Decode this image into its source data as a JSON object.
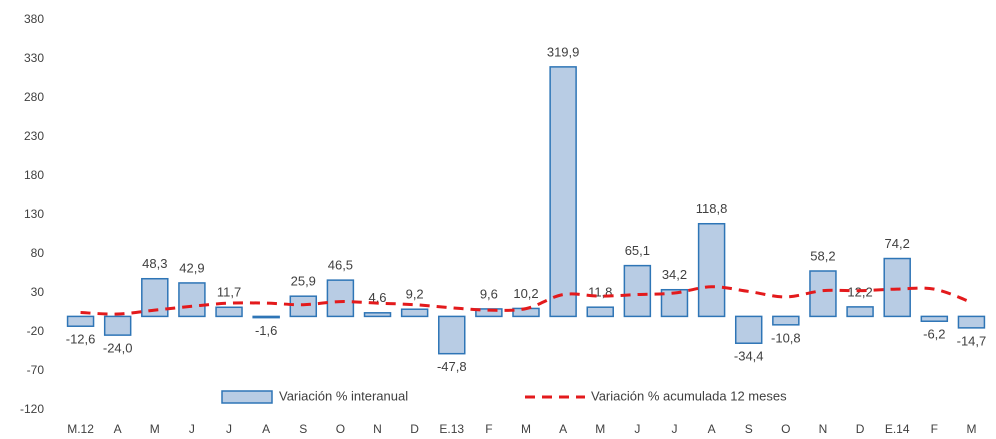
{
  "chart_data": {
    "type": "bar",
    "categories": [
      "M.12",
      "A",
      "M",
      "J",
      "J",
      "A",
      "S",
      "O",
      "N",
      "D",
      "E.13",
      "F",
      "M",
      "A",
      "M",
      "J",
      "J",
      "A",
      "S",
      "O",
      "N",
      "D",
      "E.14",
      "F",
      "M"
    ],
    "series": [
      {
        "name": "Variación % interanual",
        "type": "bar",
        "color": "#b8cce4",
        "edge_color": "#2e75b6",
        "values": [
          -12.6,
          -24.0,
          48.3,
          42.9,
          11.7,
          -1.6,
          25.9,
          46.5,
          4.6,
          9.2,
          -47.8,
          9.6,
          10.2,
          319.9,
          11.8,
          65.1,
          34.2,
          118.8,
          -34.4,
          -10.8,
          58.2,
          12.2,
          74.2,
          -6.2,
          -14.7
        ],
        "value_labels": [
          "-12,6",
          "-24,0",
          "48,3",
          "42,9",
          "11,7",
          "-1,6",
          "25,9",
          "46,5",
          "4,6",
          "9,2",
          "-47,8",
          "9,6",
          "10,2",
          "319,9",
          "11,8",
          "65,1",
          "34,2",
          "118,8",
          "-34,4",
          "-10,8",
          "58,2",
          "12,2",
          "74,2",
          "-6,2",
          "-14,7"
        ]
      },
      {
        "name": "Variación % acumulada 12 meses",
        "type": "line",
        "color": "#e31a1c",
        "dashed": true,
        "values": [
          5,
          3,
          8,
          13,
          17,
          17,
          15,
          19,
          17,
          15,
          11,
          8,
          10,
          28,
          26,
          28,
          30,
          38,
          32,
          25,
          33,
          33,
          35,
          35,
          18
        ]
      }
    ],
    "ylim": [
      -120,
      380
    ],
    "yticks": [
      -120,
      -70,
      -20,
      30,
      80,
      130,
      180,
      230,
      280,
      330,
      380
    ],
    "grid": false,
    "legend": "bottom"
  }
}
